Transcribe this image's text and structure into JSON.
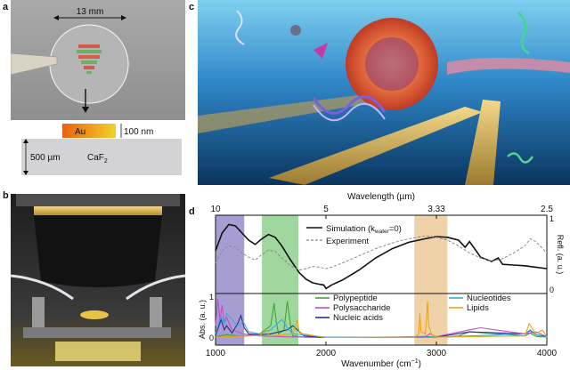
{
  "panels": {
    "a": {
      "letter": "a",
      "dimension_label": "13 mm",
      "metal_label": "Au",
      "metal_thickness": "100 nm",
      "substrate_thickness": "500 µm",
      "substrate_name": "CaF",
      "substrate_subscript": "2"
    },
    "b": {
      "letter": "b"
    },
    "c": {
      "letter": "c"
    },
    "d": {
      "letter": "d"
    }
  },
  "chart_data": {
    "type": "line",
    "top_axis": {
      "label": "Wavelength (µm)",
      "ticks": [
        {
          "label": "10",
          "wavenumber": 1000
        },
        {
          "label": "5",
          "wavenumber": 2000
        },
        {
          "label": "3.33",
          "wavenumber": 3000
        },
        {
          "label": "2.5",
          "wavenumber": 4000
        }
      ]
    },
    "xlabel_main": "Wavenumber (cm",
    "xlabel_sup": "−1",
    "xlabel_end": ")",
    "xlim": [
      1000,
      4000
    ],
    "x_ticks": [
      "1000",
      "2000",
      "3000",
      "4000"
    ],
    "highlight_bands": [
      {
        "from": 1000,
        "to": 1260,
        "color": "#8a7cc4"
      },
      {
        "from": 1420,
        "to": 1750,
        "color": "#7fc97f"
      },
      {
        "from": 2800,
        "to": 3100,
        "color": "#e9c38a"
      }
    ],
    "upper_plot": {
      "ylabel": "Refl. (a. u.)",
      "ylim": [
        0,
        1
      ],
      "y_ticks": [
        "0",
        "1"
      ],
      "legend": {
        "simulation_pre": "Simulation (k",
        "simulation_sub": "water",
        "simulation_post": "=0)",
        "experiment": "Experiment"
      },
      "series": [
        {
          "name": "Simulation",
          "color": "#111111",
          "dash": false,
          "x": [
            1000,
            1060,
            1120,
            1180,
            1240,
            1300,
            1360,
            1420,
            1480,
            1540,
            1600,
            1680,
            1760,
            1820,
            1880,
            1940,
            1980,
            2000,
            2050,
            2150,
            2300,
            2450,
            2600,
            2750,
            2900,
            3000,
            3100,
            3200,
            3260,
            3300,
            3360,
            3400,
            3500,
            3560,
            3600,
            3700,
            3800,
            3900,
            4000
          ],
          "y": [
            0.55,
            0.8,
            0.92,
            0.9,
            0.8,
            0.7,
            0.64,
            0.72,
            0.78,
            0.74,
            0.62,
            0.42,
            0.24,
            0.15,
            0.1,
            0.08,
            0.07,
            0.02,
            0.07,
            0.14,
            0.28,
            0.45,
            0.58,
            0.67,
            0.72,
            0.75,
            0.74,
            0.7,
            0.6,
            0.68,
            0.55,
            0.46,
            0.4,
            0.45,
            0.36,
            0.35,
            0.34,
            0.32,
            0.3
          ]
        },
        {
          "name": "Experiment",
          "color": "#888888",
          "dash": true,
          "x": [
            1000,
            1060,
            1120,
            1180,
            1240,
            1300,
            1360,
            1420,
            1480,
            1540,
            1600,
            1680,
            1760,
            1820,
            1880,
            1940,
            2000,
            2050,
            2150,
            2300,
            2450,
            2600,
            2750,
            2900,
            3000,
            3100,
            3200,
            3300,
            3400,
            3500,
            3600,
            3700,
            3800,
            3850,
            3900,
            3950,
            4000
          ],
          "y": [
            0.38,
            0.55,
            0.62,
            0.6,
            0.52,
            0.46,
            0.42,
            0.5,
            0.56,
            0.54,
            0.45,
            0.34,
            0.28,
            0.3,
            0.33,
            0.32,
            0.3,
            0.32,
            0.38,
            0.48,
            0.58,
            0.66,
            0.72,
            0.76,
            0.74,
            0.7,
            0.62,
            0.52,
            0.45,
            0.4,
            0.44,
            0.52,
            0.62,
            0.72,
            0.68,
            0.6,
            0.52
          ]
        }
      ]
    },
    "lower_plot": {
      "ylabel": "Abs. (a. u.)",
      "ylim": [
        0,
        1
      ],
      "y_ticks": [
        "0",
        "1"
      ],
      "legend_labels": [
        "Polypeptide",
        "Polysaccharide",
        "Nucleic acids",
        "Nucleotides",
        "Lipids"
      ],
      "series": [
        {
          "name": "Polypeptide",
          "color": "#3aa63a",
          "x": [
            1000,
            1100,
            1200,
            1300,
            1400,
            1500,
            1530,
            1550,
            1570,
            1620,
            1650,
            1680,
            1700,
            1800,
            2000,
            2500,
            2900,
            3000,
            3100,
            3200,
            3300,
            3800,
            3850,
            3900,
            4000
          ],
          "y": [
            0.03,
            0.08,
            0.05,
            0.06,
            0.1,
            0.3,
            0.85,
            0.4,
            0.1,
            0.2,
            0.9,
            0.3,
            0.05,
            0.02,
            0.01,
            0.01,
            0.04,
            0.02,
            0.03,
            0.05,
            0.15,
            0.05,
            0.12,
            0.04,
            0.02
          ]
        },
        {
          "name": "Polysaccharide",
          "color": "#c04fc0",
          "x": [
            1000,
            1020,
            1040,
            1060,
            1080,
            1100,
            1150,
            1200,
            1250,
            1300,
            1400,
            1600,
            2000,
            2900,
            2940,
            3000,
            3300,
            3400,
            3800,
            3900,
            4000
          ],
          "y": [
            0.3,
            0.95,
            0.45,
            0.8,
            0.35,
            0.5,
            0.2,
            0.15,
            0.1,
            0.08,
            0.05,
            0.03,
            0.01,
            0.03,
            0.1,
            0.03,
            0.2,
            0.25,
            0.1,
            0.15,
            0.03
          ]
        },
        {
          "name": "Nucleic acids",
          "color": "#2b2f8a",
          "x": [
            1000,
            1050,
            1080,
            1100,
            1150,
            1200,
            1230,
            1260,
            1300,
            1400,
            1500,
            1650,
            1700,
            1800,
            2000,
            3000,
            3300,
            3800,
            3850,
            3900,
            4000
          ],
          "y": [
            0.05,
            0.45,
            0.2,
            0.3,
            0.12,
            0.35,
            0.55,
            0.25,
            0.1,
            0.08,
            0.1,
            0.2,
            0.3,
            0.05,
            0.01,
            0.02,
            0.15,
            0.1,
            0.18,
            0.08,
            0.03
          ]
        },
        {
          "name": "Nucleotides",
          "color": "#38a9e0",
          "x": [
            1000,
            1050,
            1080,
            1100,
            1200,
            1250,
            1300,
            1400,
            1500,
            1600,
            1650,
            1700,
            2000,
            3000,
            3800,
            3850,
            3900,
            4000
          ],
          "y": [
            0.1,
            0.55,
            0.35,
            0.6,
            0.3,
            0.4,
            0.15,
            0.1,
            0.2,
            0.45,
            0.25,
            0.1,
            0.02,
            0.02,
            0.1,
            0.2,
            0.08,
            0.02
          ]
        },
        {
          "name": "Lipids",
          "color": "#e8a61e",
          "x": [
            1000,
            1200,
            1400,
            1460,
            1480,
            1500,
            1700,
            1740,
            1760,
            2000,
            2800,
            2840,
            2850,
            2860,
            2900,
            2920,
            2930,
            2960,
            3000,
            3800,
            3840,
            3900,
            3960,
            4000
          ],
          "y": [
            0.02,
            0.04,
            0.06,
            0.2,
            0.08,
            0.05,
            0.1,
            0.45,
            0.12,
            0.01,
            0.02,
            0.1,
            0.6,
            0.15,
            0.1,
            0.9,
            0.3,
            0.08,
            0.02,
            0.05,
            0.35,
            0.1,
            0.2,
            0.02
          ]
        }
      ]
    }
  },
  "colors": {
    "gold": "#e3a820",
    "substrate": "#d3d3d6",
    "ocean_deep": "#0f3f70",
    "ocean_light": "#3a8ed0",
    "vesicle": "#e0603a"
  },
  "icons": {
    "c_illustration": "molecule-illustration",
    "b_photo": "microscope-photo"
  }
}
